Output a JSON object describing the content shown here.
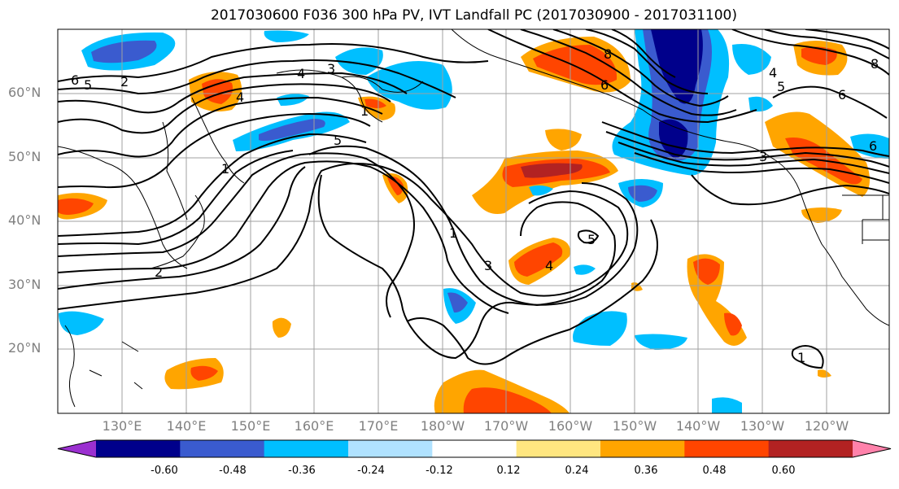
{
  "title": "2017030600 F036 300 hPa PV, IVT Landfall PC (2017030900 - 2017031100)",
  "lat_labels": [
    "60°N",
    "50°N",
    "40°N",
    "30°N",
    "20°N"
  ],
  "lon_labels": [
    "130°E",
    "140°E",
    "150°E",
    "160°E",
    "170°E",
    "180°W",
    "170°W",
    "160°W",
    "150°W",
    "140°W",
    "130°W",
    "120°W"
  ],
  "colorbar": {
    "tick_labels": [
      "-0.60",
      "-0.48",
      "-0.36",
      "-0.24",
      "-0.12",
      "0.12",
      "0.24",
      "0.36",
      "0.48",
      "0.60"
    ],
    "colors": [
      "#9b30d0",
      "#00008b",
      "#3a5bcf",
      "#00bfff",
      "#b0e2ff",
      "#ffffff",
      "#ffe680",
      "#ffa500",
      "#ff4500",
      "#b22222",
      "#ff82ab"
    ]
  },
  "contour_labels": [
    "1",
    "2",
    "3",
    "4",
    "5",
    "6",
    "8"
  ],
  "colors": {
    "grid": "#a0a0a0",
    "contour": "#000000",
    "coast": "#000000"
  }
}
